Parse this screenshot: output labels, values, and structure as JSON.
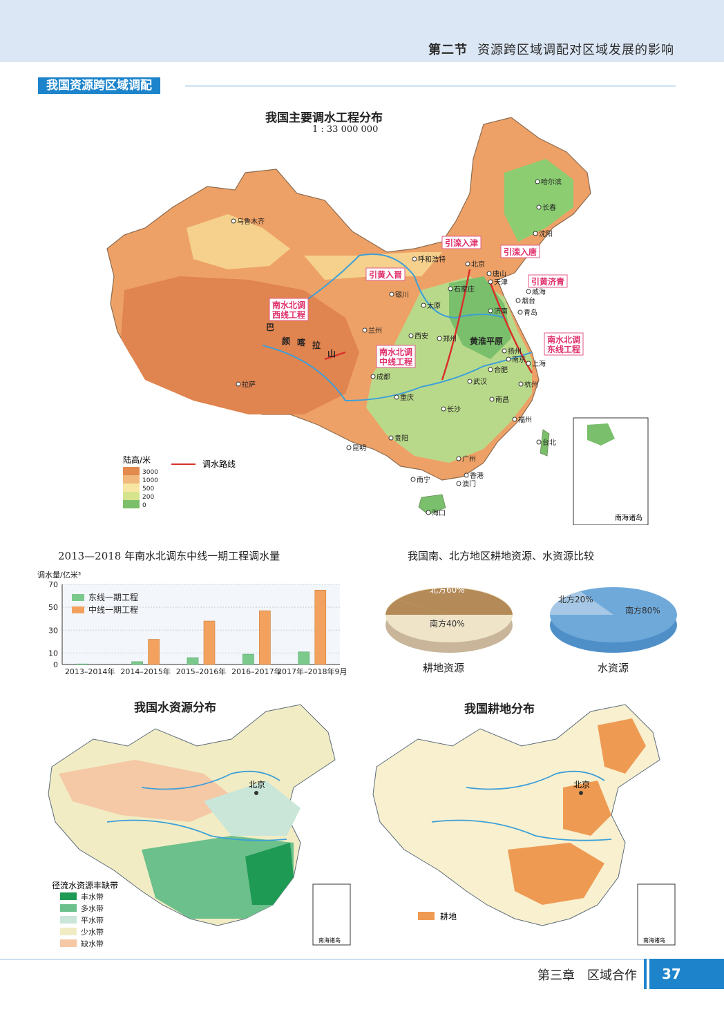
{
  "header": {
    "section": "第二节",
    "title": "资源跨区域调配对区域发展的影响"
  },
  "section_tag": "我国资源跨区域调配",
  "main_map": {
    "title": "我国主要调水工程分布",
    "scale": "1 : 33 000 000",
    "cities": [
      "乌鲁木齐",
      "哈尔滨",
      "长春",
      "沈阳",
      "呼和浩特",
      "北京",
      "天津",
      "唐山",
      "石家庄",
      "太原",
      "银川",
      "兰州",
      "西安",
      "郑州",
      "济南",
      "威海",
      "烟台",
      "青岛",
      "扬州",
      "南京",
      "上海",
      "合肥",
      "杭州",
      "武汉",
      "南昌",
      "福州",
      "台北",
      "长沙",
      "成都",
      "重庆",
      "贵阳",
      "昆明",
      "拉萨",
      "广州",
      "香港",
      "澳门",
      "南宁",
      "海口"
    ],
    "projects": [
      "引滦入津",
      "引滦入唐",
      "引黄入晋",
      "引黄济青",
      "南水北调西线工程",
      "南水北调中线工程",
      "南水北调东线工程"
    ],
    "terrain": [
      "巴",
      "颜",
      "喀",
      "拉",
      "山",
      "黄淮平原"
    ],
    "legend_title": "陆高/米",
    "legend_levels": [
      "3000",
      "1000",
      "500",
      "200",
      "0"
    ],
    "legend_colors": [
      "#e38a4e",
      "#f1b97c",
      "#f7e7a2",
      "#d6e48e",
      "#7cbf6a"
    ],
    "route_label": "调水路线",
    "inset_label": "南海诸岛"
  },
  "bar_chart_title": "2013—2018 年南水北调东中线一期工程调水量",
  "chart_data": {
    "type": "bar",
    "ylabel": "调水量/亿米³",
    "ylim": [
      0,
      70
    ],
    "yticks": [
      0,
      10,
      30,
      50,
      70
    ],
    "categories": [
      "2013–2014年",
      "2014–2015年",
      "2015–2016年",
      "2016–2017年",
      "2017年–2018年9月"
    ],
    "series": [
      {
        "name": "东线一期工程",
        "color": "#7cc98c",
        "values": [
          0.5,
          2.5,
          6,
          9,
          11
        ]
      },
      {
        "name": "中线一期工程",
        "color": "#f2a25e",
        "values": [
          0,
          22,
          38,
          47,
          65
        ]
      }
    ]
  },
  "pie_title": "我国南、北方地区耕地资源、水资源比较",
  "pies": [
    {
      "caption": "耕地资源",
      "north_label": "北方60%",
      "south_label": "南方40%"
    },
    {
      "caption": "水资源",
      "north_label": "北方20%",
      "south_label": "南方80%"
    }
  ],
  "water_map": {
    "title": "我国水资源分布",
    "city": "北京",
    "legend_title": "径流水资源丰缺带",
    "legend": [
      {
        "label": "丰水带",
        "color": "#1f9a55"
      },
      {
        "label": "多水带",
        "color": "#6cc08b"
      },
      {
        "label": "平水带",
        "color": "#c9e6d9"
      },
      {
        "label": "少水带",
        "color": "#f1ecc4"
      },
      {
        "label": "缺水带",
        "color": "#f5c8a6"
      }
    ],
    "inset_label": "南海诸岛"
  },
  "farm_map": {
    "title": "我国耕地分布",
    "city": "北京",
    "legend_label": "耕地",
    "legend_color": "#ee9a53",
    "inset_label": "南海诸岛"
  },
  "footer": {
    "chapter": "第三章",
    "title": "区域合作",
    "page": "37"
  }
}
